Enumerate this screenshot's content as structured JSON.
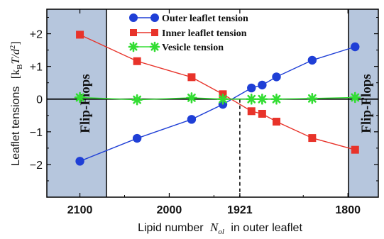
{
  "chart_data": {
    "type": "line",
    "ylabel_main": "Leaflet tensions",
    "ylabel_units": "[k",
    "ylabel_units_sub": "B",
    "ylabel_units_rest": "T/d",
    "ylabel_units_sup": "2",
    "ylabel_units_end": "]",
    "xlabel_main": "Lipid number",
    "xlabel_symbol": "N",
    "xlabel_sub": "ol",
    "xlabel_end": "in outer leaflet",
    "x_reversed": true,
    "xlim": [
      2137,
      1766
    ],
    "ylim": [
      -3.0,
      2.75
    ],
    "x_ticks": [
      {
        "value": 2100,
        "label": "2100"
      },
      {
        "value": 2000,
        "label": "2000"
      },
      {
        "value": 1921,
        "label": "1921"
      },
      {
        "value": 1800,
        "label": "1800"
      }
    ],
    "y_ticks": [
      {
        "value": 2,
        "label": "+2"
      },
      {
        "value": 1,
        "label": "+1"
      },
      {
        "value": 0,
        "label": "0"
      },
      {
        "value": -1,
        "label": "−1"
      },
      {
        "value": -2,
        "label": "−2"
      }
    ],
    "crossover": {
      "x": 1921,
      "label": "1921"
    },
    "flip_regions": [
      {
        "label": "Flip-Flops",
        "x_range": [
          2137,
          2133
        ]
      },
      {
        "label": "Flip-Flops",
        "x_range": [
          1769,
          1766
        ]
      }
    ],
    "legend_position": "top",
    "series": [
      {
        "name": "Outer leaflet tension",
        "color": "#1f3fd6",
        "marker": "circle",
        "x": [
          2100,
          2036,
          1975,
          1940,
          1908,
          1896,
          1880,
          1840,
          1792
        ],
        "y": [
          -1.9,
          -1.2,
          -0.62,
          -0.16,
          0.34,
          0.43,
          0.68,
          1.19,
          1.6
        ]
      },
      {
        "name": "Inner leaflet tension",
        "color": "#e8332a",
        "marker": "square",
        "x": [
          2100,
          2036,
          1975,
          1940,
          1908,
          1896,
          1880,
          1840,
          1792
        ],
        "y": [
          1.97,
          1.16,
          0.67,
          0.15,
          -0.37,
          -0.45,
          -0.69,
          -1.19,
          -1.55
        ]
      },
      {
        "name": "Vesicle tension",
        "color": "#33dd33",
        "marker": "asterisk",
        "x": [
          2100,
          2036,
          1975,
          1940,
          1908,
          1896,
          1880,
          1840,
          1792
        ],
        "y": [
          0.05,
          -0.02,
          0.04,
          0.0,
          0.0,
          0.0,
          0.0,
          0.02,
          0.05
        ]
      }
    ]
  }
}
